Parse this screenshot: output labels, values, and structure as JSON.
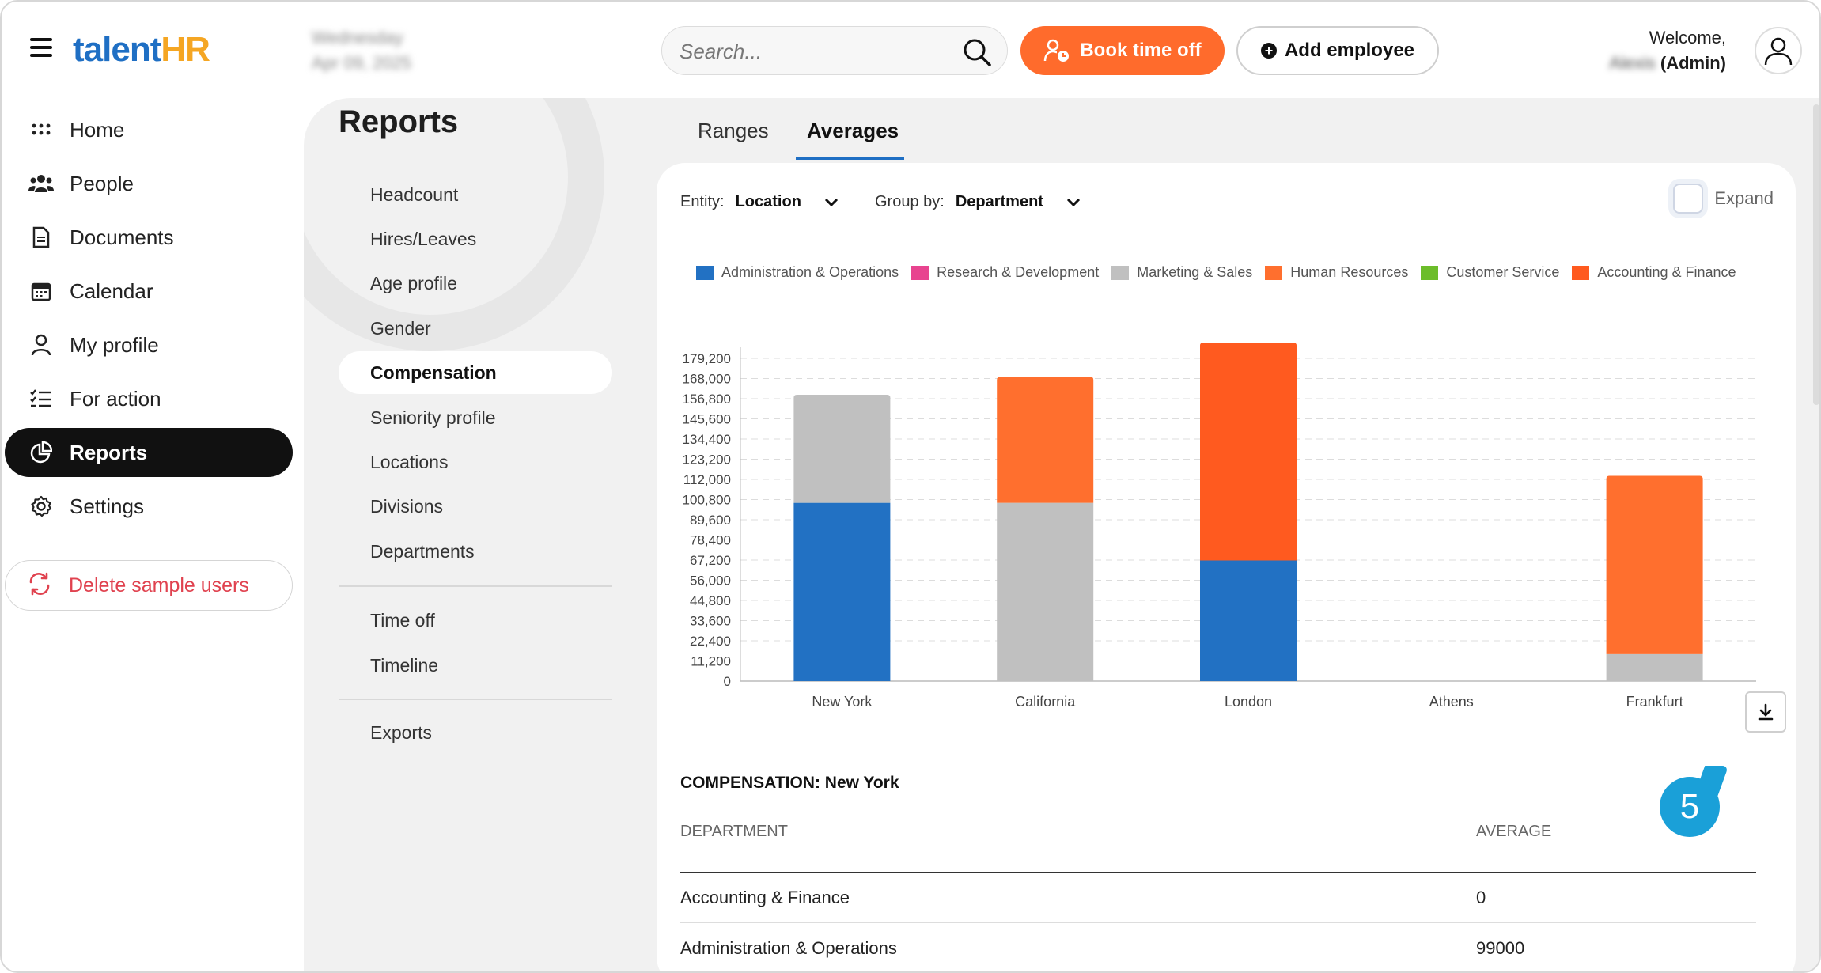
{
  "header": {
    "logo_talent": "talent",
    "logo_hr": "HR",
    "date_line1": "Wednesday",
    "date_line2": "Apr 09, 2025",
    "search_placeholder": "Search...",
    "book_label": "Book time off",
    "add_label": "Add employee",
    "welcome": "Welcome,",
    "user_name": "Alexis",
    "user_role": "(Admin)"
  },
  "sidebar": {
    "items": [
      {
        "label": "Home",
        "icon": "grid-dots-icon"
      },
      {
        "label": "People",
        "icon": "people-icon"
      },
      {
        "label": "Documents",
        "icon": "document-icon"
      },
      {
        "label": "Calendar",
        "icon": "calendar-icon"
      },
      {
        "label": "My profile",
        "icon": "user-icon"
      },
      {
        "label": "For action",
        "icon": "checklist-icon"
      },
      {
        "label": "Reports",
        "icon": "pie-chart-icon"
      },
      {
        "label": "Settings",
        "icon": "gear-icon"
      }
    ],
    "active": "Reports",
    "delete_label": "Delete sample users"
  },
  "reports": {
    "title": "Reports",
    "items": [
      "Headcount",
      "Hires/Leaves",
      "Age profile",
      "Gender",
      "Compensation",
      "Seniority profile",
      "Locations",
      "Divisions",
      "Departments"
    ],
    "items2": [
      "Time off",
      "Timeline"
    ],
    "items3": [
      "Exports"
    ],
    "active": "Compensation"
  },
  "tabs": [
    "Ranges",
    "Averages"
  ],
  "active_tab": "Averages",
  "filters": {
    "entity_label": "Entity:",
    "entity_value": "Location",
    "group_label": "Group by:",
    "group_value": "Department",
    "expand_label": "Expand"
  },
  "chart_data": {
    "type": "bar",
    "stacked": true,
    "categories": [
      "New York",
      "California",
      "London",
      "Athens",
      "Frankfurt"
    ],
    "ylim": [
      0,
      179200
    ],
    "yticks": [
      "0",
      "11,200",
      "22,400",
      "33,600",
      "44,800",
      "56,000",
      "67,200",
      "78,400",
      "89,600",
      "100,800",
      "112,000",
      "123,200",
      "134,400",
      "145,600",
      "156,800",
      "168,000",
      "179,200"
    ],
    "grid": true,
    "legend_position": "top",
    "series": [
      {
        "name": "Administration & Operations",
        "color": "#2271c3",
        "values": [
          99000,
          0,
          67000,
          0,
          0
        ]
      },
      {
        "name": "Research & Development",
        "color": "#e8448f",
        "values": [
          0,
          0,
          0,
          0,
          0
        ]
      },
      {
        "name": "Marketing & Sales",
        "color": "#c0c0c0",
        "values": [
          60000,
          99000,
          0,
          0,
          15000
        ]
      },
      {
        "name": "Human Resources",
        "color": "#ff6f2e",
        "values": [
          0,
          70000,
          0,
          0,
          99000
        ]
      },
      {
        "name": "Customer Service",
        "color": "#6cbd2a",
        "values": [
          0,
          0,
          0,
          0,
          0
        ]
      },
      {
        "name": "Accounting & Finance",
        "color": "#ff5a1f",
        "values": [
          0,
          0,
          121000,
          0,
          0
        ]
      }
    ]
  },
  "table": {
    "title": "COMPENSATION: New York",
    "col_department": "DEPARTMENT",
    "col_average": "AVERAGE",
    "rows": [
      {
        "department": "Accounting & Finance",
        "average": "0"
      },
      {
        "department": "Administration & Operations",
        "average": "99000"
      }
    ]
  },
  "badge": "5"
}
